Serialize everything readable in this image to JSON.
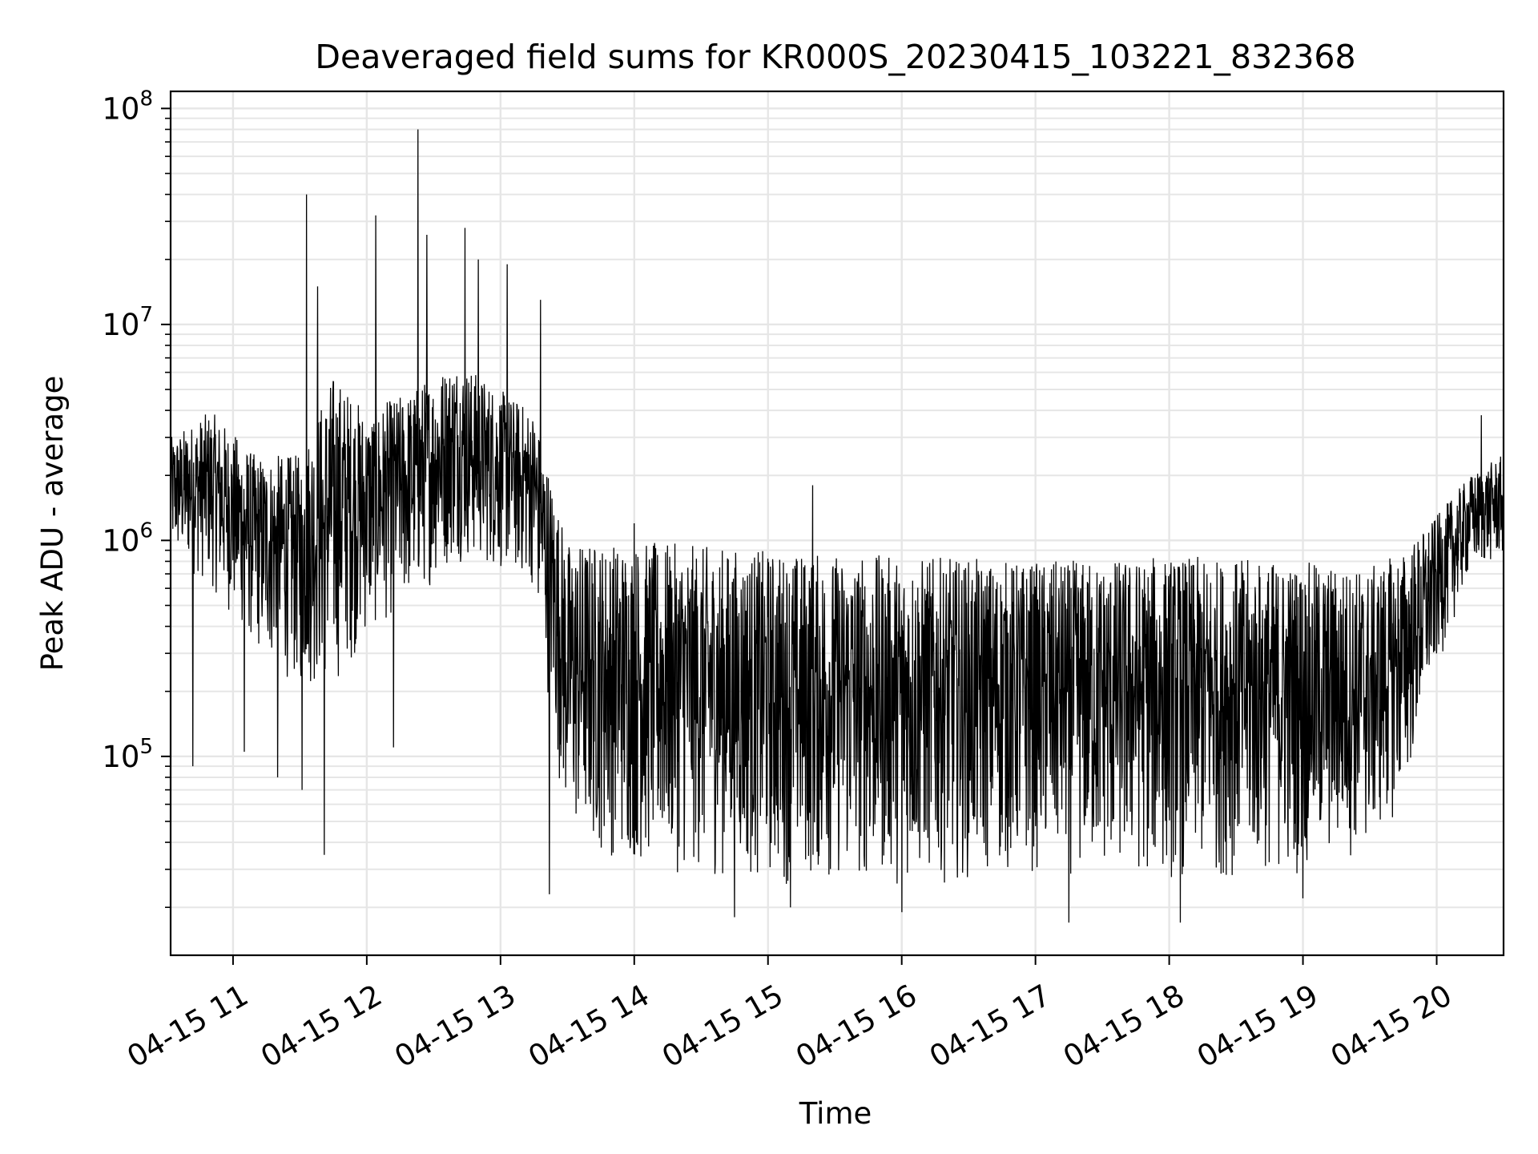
{
  "chart_data": {
    "type": "line",
    "title": "Deaveraged field sums for KR000S_20230415_103221_832368",
    "xlabel": "Time",
    "ylabel": "Peak ADU - average",
    "yscale": "log",
    "xlim": [
      "2023-04-15 10:32",
      "2023-04-15 20:30"
    ],
    "ylim": [
      12000,
      120000000
    ],
    "grid": true,
    "grid_minor": true,
    "legend": "none",
    "line_color": "#000000",
    "grid_color": "#e6e6e6",
    "x_ticks": [
      {
        "value": "2023-04-15 11:00",
        "label": "04-15 11"
      },
      {
        "value": "2023-04-15 12:00",
        "label": "04-15 12"
      },
      {
        "value": "2023-04-15 13:00",
        "label": "04-15 13"
      },
      {
        "value": "2023-04-15 14:00",
        "label": "04-15 14"
      },
      {
        "value": "2023-04-15 15:00",
        "label": "04-15 15"
      },
      {
        "value": "2023-04-15 16:00",
        "label": "04-15 16"
      },
      {
        "value": "2023-04-15 17:00",
        "label": "04-15 17"
      },
      {
        "value": "2023-04-15 18:00",
        "label": "04-15 18"
      },
      {
        "value": "2023-04-15 19:00",
        "label": "04-15 19"
      },
      {
        "value": "2023-04-15 20:00",
        "label": "04-15 20"
      }
    ],
    "y_ticks": [
      {
        "value": 100000,
        "base": "10",
        "exp": "5"
      },
      {
        "value": 1000000,
        "base": "10",
        "exp": "6"
      },
      {
        "value": 10000000,
        "base": "10",
        "exp": "7"
      },
      {
        "value": 100000000,
        "base": "10",
        "exp": "8"
      }
    ],
    "series": [
      {
        "envelope": [
          {
            "t": "2023-04-15 10:32",
            "low": 800000,
            "high": 3000000
          },
          {
            "t": "2023-04-15 10:50",
            "low": 600000,
            "high": 4000000
          },
          {
            "t": "2023-04-15 11:10",
            "low": 300000,
            "high": 2500000
          },
          {
            "t": "2023-04-15 11:30",
            "low": 200000,
            "high": 2500000
          },
          {
            "t": "2023-04-15 11:45",
            "low": 200000,
            "high": 6000000
          },
          {
            "t": "2023-04-15 12:00",
            "low": 350000,
            "high": 4000000
          },
          {
            "t": "2023-04-15 12:20",
            "low": 500000,
            "high": 5000000
          },
          {
            "t": "2023-04-15 12:40",
            "low": 800000,
            "high": 7000000
          },
          {
            "t": "2023-04-15 13:00",
            "low": 700000,
            "high": 5000000
          },
          {
            "t": "2023-04-15 13:15",
            "low": 600000,
            "high": 4000000
          },
          {
            "t": "2023-04-15 13:30",
            "low": 40000,
            "high": 1000000
          },
          {
            "t": "2023-04-15 14:00",
            "low": 30000,
            "high": 1000000
          },
          {
            "t": "2023-04-15 15:00",
            "low": 25000,
            "high": 900000
          },
          {
            "t": "2023-04-15 16:00",
            "low": 25000,
            "high": 850000
          },
          {
            "t": "2023-04-15 17:00",
            "low": 28000,
            "high": 800000
          },
          {
            "t": "2023-04-15 18:00",
            "low": 26000,
            "high": 850000
          },
          {
            "t": "2023-04-15 19:00",
            "low": 28000,
            "high": 800000
          },
          {
            "t": "2023-04-15 19:30",
            "low": 35000,
            "high": 750000
          },
          {
            "t": "2023-04-15 19:45",
            "low": 60000,
            "high": 900000
          },
          {
            "t": "2023-04-15 20:00",
            "low": 250000,
            "high": 1300000
          },
          {
            "t": "2023-04-15 20:15",
            "low": 700000,
            "high": 2000000
          },
          {
            "t": "2023-04-15 20:30",
            "low": 800000,
            "high": 2500000
          }
        ],
        "peaks": [
          {
            "t": "2023-04-15 11:33",
            "value": 40000000
          },
          {
            "t": "2023-04-15 11:38",
            "value": 15000000
          },
          {
            "t": "2023-04-15 12:04",
            "value": 32000000
          },
          {
            "t": "2023-04-15 12:23",
            "value": 20000000
          },
          {
            "t": "2023-04-15 12:23",
            "value": 80000000
          },
          {
            "t": "2023-04-15 12:27",
            "value": 26000000
          },
          {
            "t": "2023-04-15 12:44",
            "value": 28000000
          },
          {
            "t": "2023-04-15 12:50",
            "value": 20000000
          },
          {
            "t": "2023-04-15 13:03",
            "value": 19000000
          },
          {
            "t": "2023-04-15 13:18",
            "value": 13000000
          },
          {
            "t": "2023-04-15 14:00",
            "value": 1200000
          },
          {
            "t": "2023-04-15 15:20",
            "value": 1800000
          },
          {
            "t": "2023-04-15 19:00",
            "value": 1100000
          },
          {
            "t": "2023-04-15 20:20",
            "value": 3800000
          }
        ],
        "dips": [
          {
            "t": "2023-04-15 10:42",
            "value": 90000
          },
          {
            "t": "2023-04-15 11:05",
            "value": 105000
          },
          {
            "t": "2023-04-15 11:20",
            "value": 80000
          },
          {
            "t": "2023-04-15 11:31",
            "value": 70000
          },
          {
            "t": "2023-04-15 11:41",
            "value": 35000
          },
          {
            "t": "2023-04-15 12:12",
            "value": 110000
          },
          {
            "t": "2023-04-15 13:22",
            "value": 23000
          },
          {
            "t": "2023-04-15 14:45",
            "value": 18000
          },
          {
            "t": "2023-04-15 15:10",
            "value": 20000
          },
          {
            "t": "2023-04-15 16:00",
            "value": 19000
          },
          {
            "t": "2023-04-15 17:15",
            "value": 17000
          },
          {
            "t": "2023-04-15 18:05",
            "value": 17000
          },
          {
            "t": "2023-04-15 19:00",
            "value": 22000
          }
        ]
      }
    ]
  }
}
